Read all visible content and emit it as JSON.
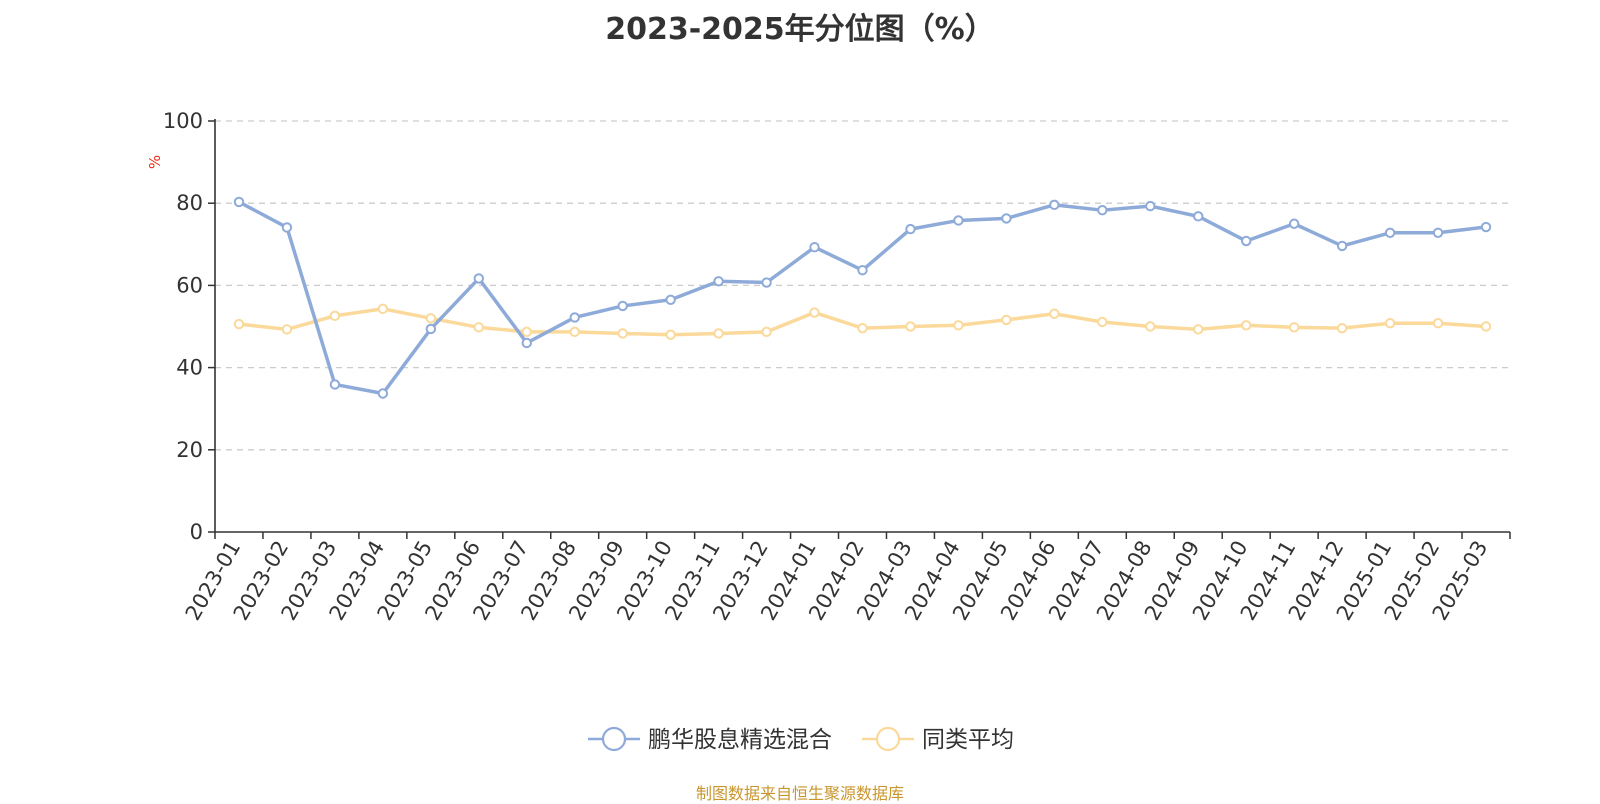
{
  "chart_data": {
    "type": "line",
    "title": "2023-2025年分位图（%）",
    "ylabel": "%",
    "xlabel": "",
    "ylim": [
      0,
      100
    ],
    "yticks": [
      0,
      20,
      40,
      60,
      80,
      100
    ],
    "grid": true,
    "legend_position": "bottom-center",
    "categories": [
      "2023-01",
      "2023-02",
      "2023-03",
      "2023-04",
      "2023-05",
      "2023-06",
      "2023-07",
      "2023-08",
      "2023-09",
      "2023-10",
      "2023-11",
      "2023-12",
      "2024-01",
      "2024-02",
      "2024-03",
      "2024-04",
      "2024-05",
      "2024-06",
      "2024-07",
      "2024-08",
      "2024-09",
      "2024-10",
      "2024-11",
      "2024-12",
      "2025-01",
      "2025-02",
      "2025-03"
    ],
    "series": [
      {
        "name": "鹏华股息精选混合",
        "color": "#8eaad8",
        "values": [
          80.3,
          74.1,
          35.9,
          33.7,
          49.4,
          61.7,
          46.0,
          52.2,
          55.0,
          56.5,
          61.0,
          60.7,
          69.3,
          63.7,
          73.7,
          75.8,
          76.3,
          79.6,
          78.3,
          79.3,
          76.8,
          70.8,
          75.0,
          69.6,
          72.8,
          72.8,
          74.2
        ]
      },
      {
        "name": "同类平均",
        "color": "#fad99a",
        "values": [
          50.6,
          49.3,
          52.6,
          54.3,
          52.0,
          49.8,
          48.7,
          48.7,
          48.3,
          48.0,
          48.3,
          48.7,
          53.4,
          49.6,
          50.0,
          50.3,
          51.6,
          53.1,
          51.1,
          50.0,
          49.3,
          50.3,
          49.8,
          49.6,
          50.8,
          50.8,
          50.0
        ]
      }
    ]
  },
  "source_note": "制图数据来自恒生聚源数据库",
  "colors": {
    "axis": "#333333",
    "grid": "#cccccc",
    "unit": "#e8321c",
    "source": "#c8962e"
  }
}
